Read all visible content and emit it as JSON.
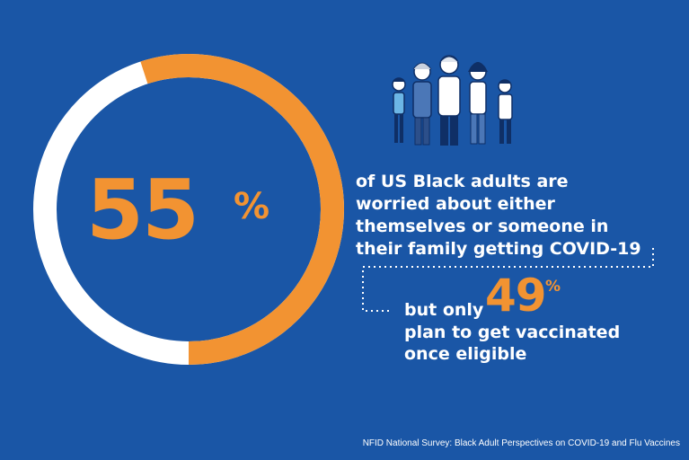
{
  "stat_main": {
    "value": "55",
    "percent_sign": "%",
    "fraction": 0.55
  },
  "text_main": {
    "lines": [
      "of US Black adults are",
      "worried about either",
      "themselves or someone in",
      "their family getting COVID-19"
    ]
  },
  "stat_sub": {
    "prefix": "but only",
    "value": "49",
    "percent_sign": "%",
    "lines": [
      "plan to get vaccinated",
      "once eligible"
    ]
  },
  "source": "NFID National Survey: Black Adult Perspectives on COVID-19 and Flu Vaccines",
  "colors": {
    "background": "#1a56a6",
    "accent": "#f29332",
    "ring_remainder": "#ffffff",
    "text": "#ffffff"
  },
  "illustration": "group-of-masked-people-icon"
}
